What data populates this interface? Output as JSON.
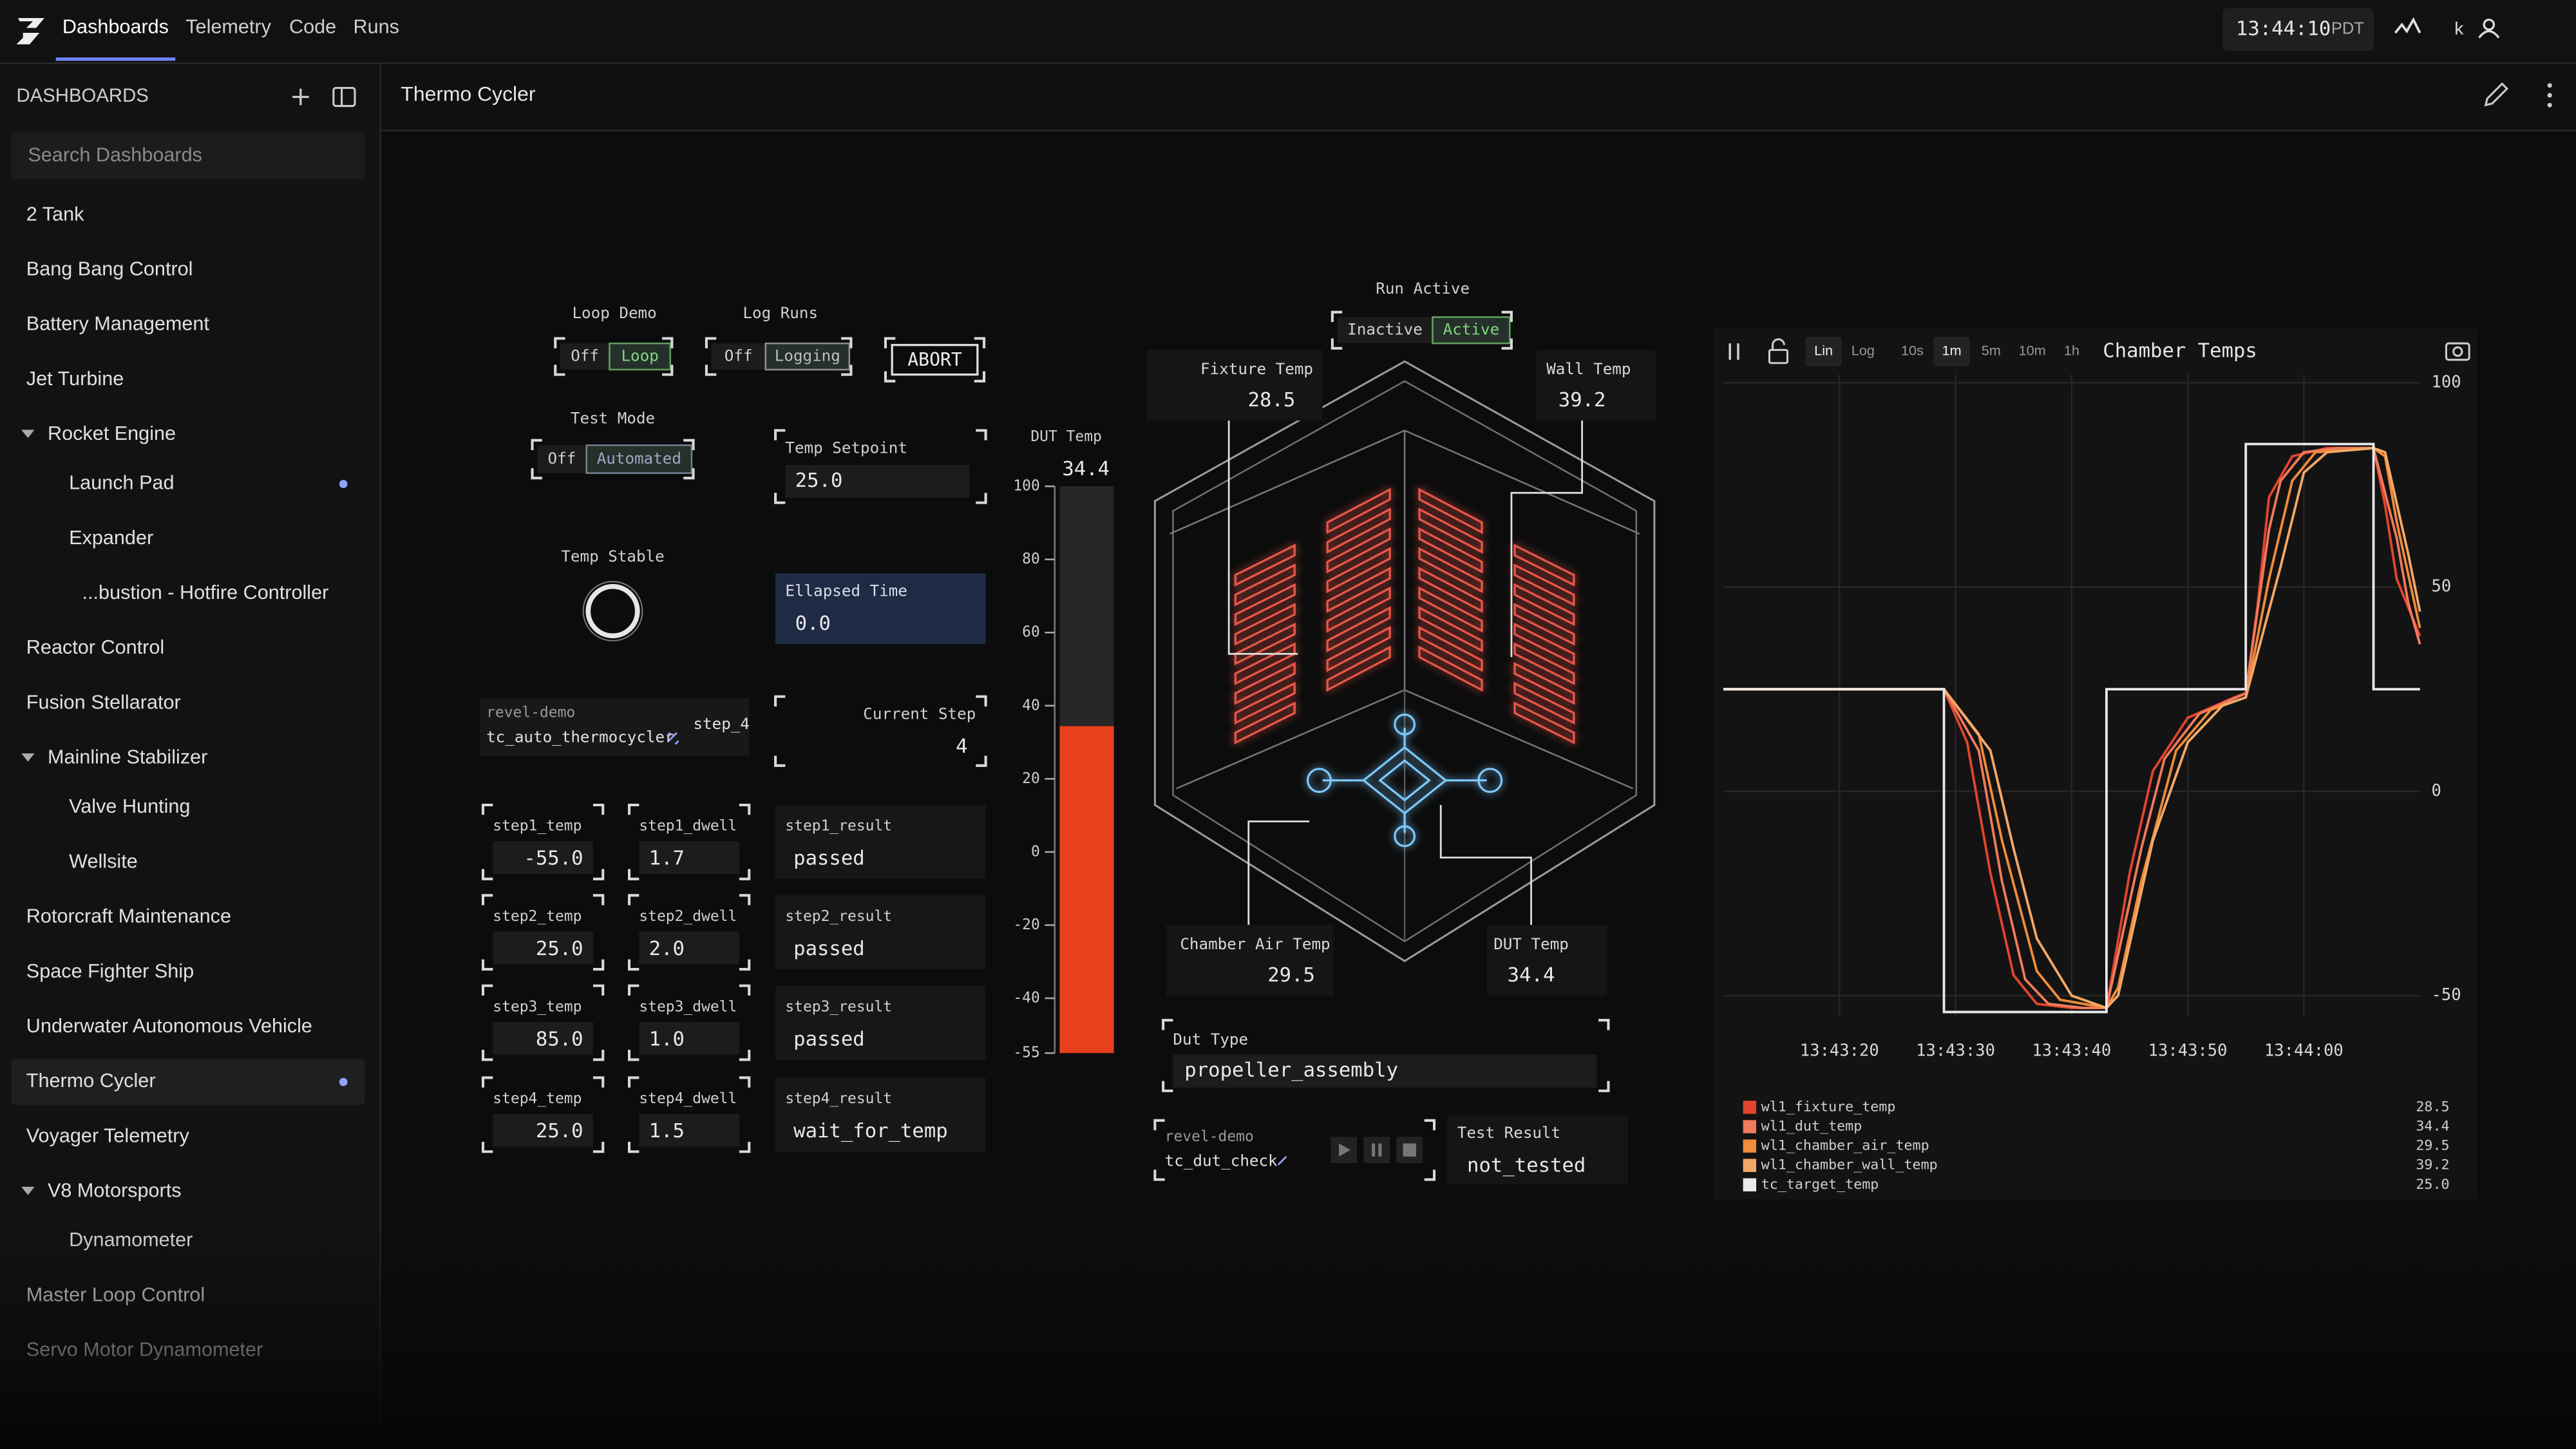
{
  "nav": {
    "tabs": [
      "Dashboards",
      "Telemetry",
      "Code",
      "Runs"
    ],
    "active_tab": 0,
    "clock": "13:44:10",
    "timezone": "PDT",
    "user": "k"
  },
  "sidebar": {
    "title": "DASHBOARDS",
    "search_placeholder": "Search Dashboards",
    "items": [
      {
        "label": "2 Tank",
        "level": 0
      },
      {
        "label": "Bang Bang Control",
        "level": 0
      },
      {
        "label": "Battery Management",
        "level": 0
      },
      {
        "label": "Jet Turbine",
        "level": 0
      },
      {
        "label": "Rocket Engine",
        "level": 0,
        "expanded": true
      },
      {
        "label": "Launch Pad",
        "level": 1,
        "live": true
      },
      {
        "label": "Expander",
        "level": 1
      },
      {
        "label": "...bustion - Hotfire Controller",
        "level": 2
      },
      {
        "label": "Reactor Control",
        "level": 0
      },
      {
        "label": "Fusion Stellarator",
        "level": 0
      },
      {
        "label": "Mainline Stabilizer",
        "level": 0,
        "expanded": true
      },
      {
        "label": "Valve Hunting",
        "level": 1
      },
      {
        "label": "Wellsite",
        "level": 1
      },
      {
        "label": "Rotorcraft Maintenance",
        "level": 0
      },
      {
        "label": "Space Fighter Ship",
        "level": 0
      },
      {
        "label": "Underwater Autonomous Vehicle",
        "level": 0
      },
      {
        "label": "Thermo Cycler",
        "level": 0,
        "live": true,
        "selected": true
      },
      {
        "label": "Voyager Telemetry",
        "level": 0
      },
      {
        "label": "V8 Motorsports",
        "level": 0,
        "expanded": true
      },
      {
        "label": "Dynamometer",
        "level": 1
      },
      {
        "label": "Master Loop Control",
        "level": 0
      },
      {
        "label": "Servo Motor Dynamometer",
        "level": 0
      }
    ]
  },
  "dashboard": {
    "title": "Thermo Cycler",
    "switches": [
      {
        "label": "Loop Demo",
        "options": [
          "Off",
          "Loop"
        ],
        "selected": 1,
        "accent": "#7fd67f"
      },
      {
        "label": "Log Runs",
        "options": [
          "Off",
          "Logging"
        ],
        "selected": 1,
        "accent": "#bdbdbd"
      },
      {
        "label": "Test Mode",
        "options": [
          "Off",
          "Automated"
        ],
        "selected": 1,
        "accent": "#9aa6c8"
      },
      {
        "label": "Run Active",
        "options": [
          "Inactive",
          "Active"
        ],
        "selected": 1,
        "accent": "#7fd67f"
      }
    ],
    "abort_button": "ABORT",
    "temp_stable_label": "Temp Stable",
    "fields": [
      {
        "label": "Temp Setpoint",
        "value": "25.0"
      },
      {
        "label": "Ellapsed Time",
        "value": "0.0"
      },
      {
        "label": "Current Step",
        "value": "4"
      }
    ],
    "sequence": {
      "user": "revel-demo",
      "name": "tc_auto_thermocycler",
      "state": "step_4"
    },
    "steps": [
      {
        "temp_label": "step1_temp",
        "temp": "-55.0",
        "dwell_label": "step1_dwell",
        "dwell": "1.7",
        "result_label": "step1_result",
        "result": "passed"
      },
      {
        "temp_label": "step2_temp",
        "temp": "25.0",
        "dwell_label": "step2_dwell",
        "dwell": "2.0",
        "result_label": "step2_result",
        "result": "passed"
      },
      {
        "temp_label": "step3_temp",
        "temp": "85.0",
        "dwell_label": "step3_dwell",
        "dwell": "1.0",
        "result_label": "step3_result",
        "result": "passed"
      },
      {
        "temp_label": "step4_temp",
        "temp": "25.0",
        "dwell_label": "step4_dwell",
        "dwell": "1.5",
        "result_label": "step4_result",
        "result": "wait_for_temp"
      }
    ],
    "dut_gauge": {
      "label": "DUT Temp",
      "value": 34.4,
      "ylim": [
        -55,
        100
      ],
      "yticks": [
        100,
        80,
        60,
        40,
        20,
        0,
        -20,
        -40,
        -55
      ],
      "color": "#e8401c"
    },
    "readouts": [
      {
        "label": "Fixture Temp",
        "value": "28.5"
      },
      {
        "label": "Wall Temp",
        "value": "39.2"
      },
      {
        "label": "Chamber Air Temp",
        "value": "29.5"
      },
      {
        "label": "DUT Temp",
        "value": "34.4"
      }
    ],
    "dut_type": {
      "label": "Dut Type",
      "value": "propeller_assembly"
    },
    "dut_sequence": {
      "user": "revel-demo",
      "name": "tc_dut_check"
    },
    "test_result": {
      "label": "Test Result",
      "value": "not_tested"
    }
  },
  "chart_data": {
    "type": "line",
    "title": "Chamber Temps",
    "scale_options": [
      "Lin",
      "Log"
    ],
    "scale_selected": 0,
    "windows": [
      "10s",
      "1m",
      "5m",
      "10m",
      "1h"
    ],
    "window_selected": 1,
    "xlim": [
      "13:43:10",
      "13:44:10"
    ],
    "xticks": [
      "13:43:20",
      "13:43:30",
      "13:43:40",
      "13:43:50",
      "13:44:00"
    ],
    "ylim": [
      -55,
      102
    ],
    "yticks": [
      100,
      50,
      0,
      -50
    ],
    "grid": true,
    "series": [
      {
        "name": "wl1_fixture_temp",
        "color": "#e2452f",
        "current": "28.5",
        "x": [
          "13:43:10",
          "13:43:29",
          "13:43:31",
          "13:43:33",
          "13:43:35",
          "13:43:37",
          "13:43:40",
          "13:43:43",
          "13:43:45",
          "13:43:47",
          "13:43:50",
          "13:43:54",
          "13:43:55",
          "13:43:56",
          "13:43:57",
          "13:43:59",
          "13:44:02",
          "13:44:06",
          "13:44:07",
          "13:44:08",
          "13:44:10"
        ],
        "values": [
          25,
          25,
          12,
          -20,
          -45,
          -52,
          -53,
          -53,
          -20,
          5,
          18,
          23,
          24,
          45,
          72,
          82,
          84,
          84,
          70,
          52,
          38
        ]
      },
      {
        "name": "wl1_dut_temp",
        "color": "#f07a5c",
        "current": "34.4",
        "x": [
          "13:43:10",
          "13:43:29",
          "13:43:32",
          "13:43:34",
          "13:43:36",
          "13:43:38",
          "13:43:41",
          "13:43:43",
          "13:43:46",
          "13:43:48",
          "13:43:51",
          "13:43:55",
          "13:43:57",
          "13:43:58",
          "13:44:00",
          "13:44:03",
          "13:44:06",
          "13:44:08",
          "13:44:09",
          "13:44:10"
        ],
        "values": [
          25,
          25,
          10,
          -22,
          -46,
          -52,
          -53,
          -53,
          -14,
          8,
          19,
          24,
          64,
          76,
          83,
          84,
          84,
          62,
          46,
          36
        ]
      },
      {
        "name": "wl1_chamber_air_temp",
        "color": "#f08c3a",
        "current": "29.5",
        "x": [
          "13:43:10",
          "13:43:29",
          "13:43:32",
          "13:43:34",
          "13:43:37",
          "13:43:39",
          "13:43:43",
          "13:43:44",
          "13:43:46",
          "13:43:49",
          "13:43:52",
          "13:43:55",
          "13:43:57",
          "13:43:59",
          "13:44:01",
          "13:44:06",
          "13:44:07",
          "13:44:08",
          "13:44:10"
        ],
        "values": [
          25,
          25,
          14,
          -12,
          -44,
          -51,
          -53,
          -48,
          -22,
          10,
          20,
          23,
          52,
          76,
          83,
          84,
          82,
          66,
          40
        ]
      },
      {
        "name": "wl1_chamber_wall_temp",
        "color": "#f3a868",
        "current": "39.2",
        "x": [
          "13:43:10",
          "13:43:29",
          "13:43:33",
          "13:43:35",
          "13:43:37",
          "13:43:40",
          "13:43:43",
          "13:43:44",
          "13:43:47",
          "13:43:50",
          "13:43:53",
          "13:43:55",
          "13:43:58",
          "13:44:00",
          "13:44:02",
          "13:44:06",
          "13:44:07",
          "13:44:09",
          "13:44:10"
        ],
        "values": [
          25,
          25,
          10,
          -14,
          -36,
          -50,
          -53,
          -50,
          -12,
          12,
          21,
          23,
          55,
          78,
          83,
          84,
          83,
          58,
          44
        ]
      },
      {
        "name": "tc_target_temp",
        "color": "#e8e8e8",
        "current": "25.0",
        "x": [
          "13:43:10",
          "13:43:29",
          "13:43:29",
          "13:43:43",
          "13:43:43",
          "13:43:55",
          "13:43:55",
          "13:44:06",
          "13:44:06",
          "13:44:10"
        ],
        "values": [
          25,
          25,
          -54,
          -54,
          25,
          25,
          85,
          85,
          25,
          25
        ]
      }
    ]
  }
}
